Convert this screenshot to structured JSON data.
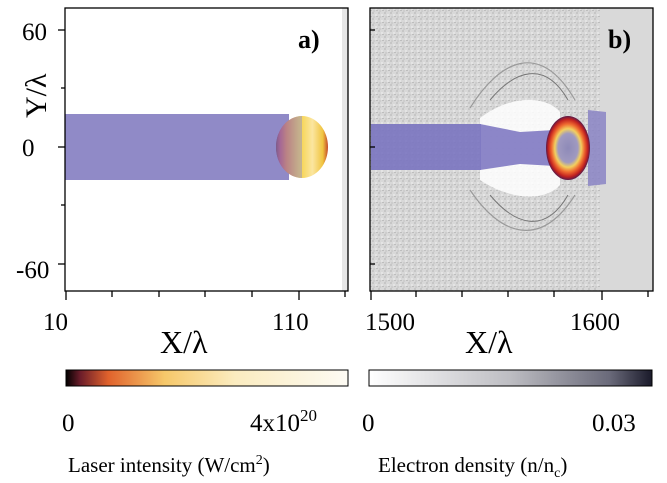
{
  "figure": {
    "panel_a": {
      "label": "a)",
      "y_axis_label": "Y/λ",
      "x_axis_label": "X/λ",
      "y_ticks": [
        "60",
        "0",
        "-60"
      ],
      "x_ticks": [
        "10",
        "110"
      ]
    },
    "panel_b": {
      "label": "b)",
      "x_axis_label": "X/λ",
      "x_ticks": [
        "1500",
        "1600"
      ]
    },
    "colorbar_laser": {
      "min": "0",
      "max_base": "4x10",
      "max_exp": "20",
      "label_pre": "Laser intensity (W/cm",
      "label_sup": "2",
      "label_post": ")"
    },
    "colorbar_density": {
      "min": "0",
      "max": "0.03",
      "label_pre": "Electron density (n/n",
      "label_sub": "c",
      "label_post": ")"
    },
    "colors": {
      "beam": "#8a84c4",
      "background_b": "#d6d6d6",
      "hot_core": "#f4e25a",
      "hot_rim": "#e85c2a",
      "dark_rim": "#7a1f55"
    }
  }
}
